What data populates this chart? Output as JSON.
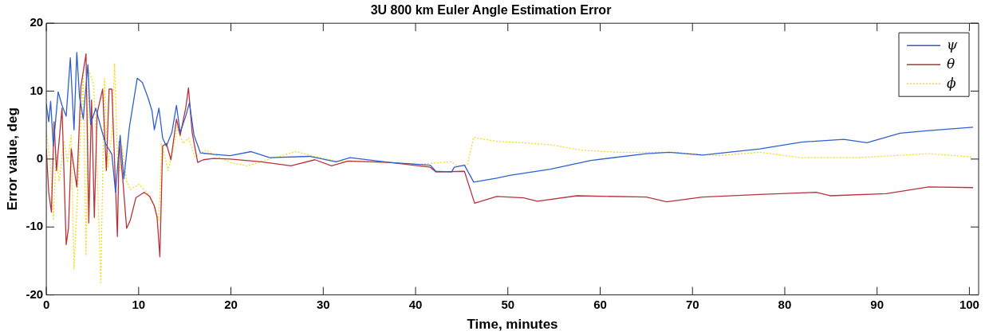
{
  "chart_data": {
    "type": "line",
    "title": "3U 800 km Euler Angle Estimation Error",
    "xlabel": "Time, minutes",
    "ylabel": "Error value, deg",
    "xlim": [
      0,
      101
    ],
    "xticks": [
      0,
      10,
      20,
      30,
      40,
      50,
      60,
      70,
      80,
      90,
      100
    ],
    "ylim": [
      -20,
      20
    ],
    "yticks": [
      -20,
      -10,
      0,
      10,
      20
    ],
    "legend": "top right",
    "marker": "none",
    "series": [
      {
        "name": "ψ",
        "color": "#2f5fd0",
        "line_style": "solid",
        "x": [
          0,
          0.26,
          0.47,
          0.76,
          1.28,
          1.7,
          2.15,
          2.6,
          3.0,
          3.3,
          3.6,
          4.0,
          4.5,
          4.8,
          5.35,
          5.9,
          6.4,
          7.1,
          7.5,
          8.0,
          8.4,
          9.0,
          9.85,
          10.4,
          11.0,
          11.45,
          11.7,
          12.2,
          12.6,
          13.0,
          13.6,
          14.1,
          14.5,
          15.1,
          15.5,
          16.0,
          16.7,
          18.1,
          19.9,
          22.2,
          24.2,
          28.5,
          31.4,
          32.9,
          37.2,
          41.6,
          42.2,
          43.9,
          44.2,
          45.3,
          46.3,
          48.8,
          50.2,
          54.6,
          59,
          65,
          67.5,
          71.1,
          77.3,
          81.8,
          86.4,
          88.9,
          92.5,
          95.6,
          100.4
        ],
        "values": [
          8.1,
          5.5,
          8.5,
          1.9,
          9.9,
          7.9,
          6.3,
          14.9,
          4.3,
          15.7,
          9.1,
          5.9,
          13.9,
          5.1,
          7.5,
          4.7,
          2.3,
          0.7,
          -4.9,
          3.5,
          -2.9,
          4.7,
          11.9,
          11.3,
          9.1,
          7.1,
          4.3,
          7.5,
          3.1,
          1.9,
          3.9,
          7.9,
          3.9,
          6.3,
          8.3,
          3.5,
          0.9,
          0.7,
          0.5,
          1.1,
          0.2,
          0.4,
          -0.4,
          0.2,
          -0.5,
          -0.9,
          -1.8,
          -1.9,
          -1.2,
          -0.9,
          -3.4,
          -2.8,
          -2.4,
          -1.5,
          -0.2,
          0.8,
          1.0,
          0.6,
          1.5,
          2.5,
          2.9,
          2.4,
          3.8,
          4.2,
          4.7
        ]
      },
      {
        "name": "θ",
        "color": "#b8323c",
        "line_style": "solid",
        "x": [
          0,
          0.26,
          0.55,
          0.84,
          1.1,
          1.7,
          2.15,
          2.4,
          2.7,
          3.3,
          3.75,
          4.3,
          4.6,
          4.9,
          5.2,
          5.5,
          6.1,
          6.5,
          6.8,
          7.1,
          7.7,
          7.9,
          8.3,
          8.7,
          9.1,
          9.7,
          10.6,
          11.2,
          11.7,
          12.0,
          12.3,
          12.6,
          13.0,
          13.5,
          14.1,
          14.5,
          15.1,
          15.4,
          15.8,
          16.4,
          17.0,
          18.1,
          19.9,
          23.3,
          26.5,
          29.1,
          30.9,
          32.7,
          37.2,
          41.6,
          42.2,
          45.3,
          45.6,
          46.4,
          48.8,
          51.7,
          53.2,
          57.5,
          65,
          67.2,
          71.1,
          77.3,
          83.4,
          84.9,
          91,
          95.6,
          100.4
        ],
        "values": [
          1.5,
          -4.9,
          -7.8,
          5.5,
          -1.7,
          7.5,
          -12.6,
          -10.2,
          1.5,
          -4.1,
          10.7,
          15.5,
          -9.4,
          8.7,
          -8.6,
          6.7,
          10.3,
          -1.7,
          10.3,
          10.3,
          -11.4,
          2.6,
          -3.3,
          -10.2,
          -9.0,
          -5.7,
          -4.9,
          -5.5,
          -6.9,
          -8.6,
          -14.4,
          1.9,
          2.3,
          -0.1,
          5.9,
          3.5,
          7.5,
          10.5,
          3.9,
          -0.5,
          -0.1,
          0.1,
          0,
          -0.4,
          -1.0,
          -0.1,
          -1.0,
          -0.3,
          -0.5,
          -1.2,
          -1.9,
          -1.8,
          -3.1,
          -6.5,
          -5.5,
          -5.7,
          -6.2,
          -5.4,
          -5.6,
          -6.3,
          -5.6,
          -5.2,
          -4.9,
          -5.4,
          -5.1,
          -4.1,
          -4.2
        ]
      },
      {
        "name": "ϕ",
        "color": "#f0dc1e",
        "line_style": "dotted",
        "x": [
          0,
          0.4,
          0.76,
          1.05,
          1.4,
          1.9,
          2.3,
          2.7,
          3.0,
          3.45,
          4.0,
          4.3,
          4.6,
          5.1,
          5.35,
          5.9,
          6.3,
          6.65,
          7.1,
          7.4,
          7.7,
          8.0,
          8.2,
          8.7,
          9.1,
          10,
          10.9,
          11.7,
          12.2,
          12.5,
          13.2,
          13.8,
          14.2,
          14.8,
          15.4,
          16.1,
          17.3,
          18.7,
          19.9,
          21.8,
          24.2,
          27,
          29.1,
          31.4,
          37.2,
          40.1,
          41.9,
          43.9,
          44.5,
          45.6,
          46.3,
          48.8,
          51.7,
          54.6,
          58.1,
          62,
          67.9,
          72.7,
          77.3,
          81.8,
          87.9,
          95.6,
          100.4
        ],
        "values": [
          3.9,
          -0.1,
          -9.0,
          0.7,
          -3.3,
          2.7,
          -0.5,
          3.5,
          -16.2,
          -3.3,
          12.3,
          -14.2,
          13.1,
          11.1,
          4.7,
          -18.2,
          11.9,
          -1.3,
          3.9,
          14.1,
          -0.1,
          -1.7,
          1.9,
          -3.3,
          -4.5,
          -3.7,
          -4.9,
          -6.9,
          -9.0,
          2.3,
          -1.7,
          1.9,
          4.7,
          2.3,
          3.1,
          0.3,
          1.3,
          0.3,
          -0.5,
          -1.0,
          0,
          1.1,
          0.4,
          -0.3,
          -0.5,
          -0.8,
          -0.6,
          -0.4,
          -1.0,
          -0.9,
          3.2,
          2.6,
          2.4,
          2.1,
          1.3,
          1.0,
          1.0,
          0.5,
          1.0,
          0.2,
          0.2,
          0.8,
          0.3
        ]
      }
    ]
  }
}
